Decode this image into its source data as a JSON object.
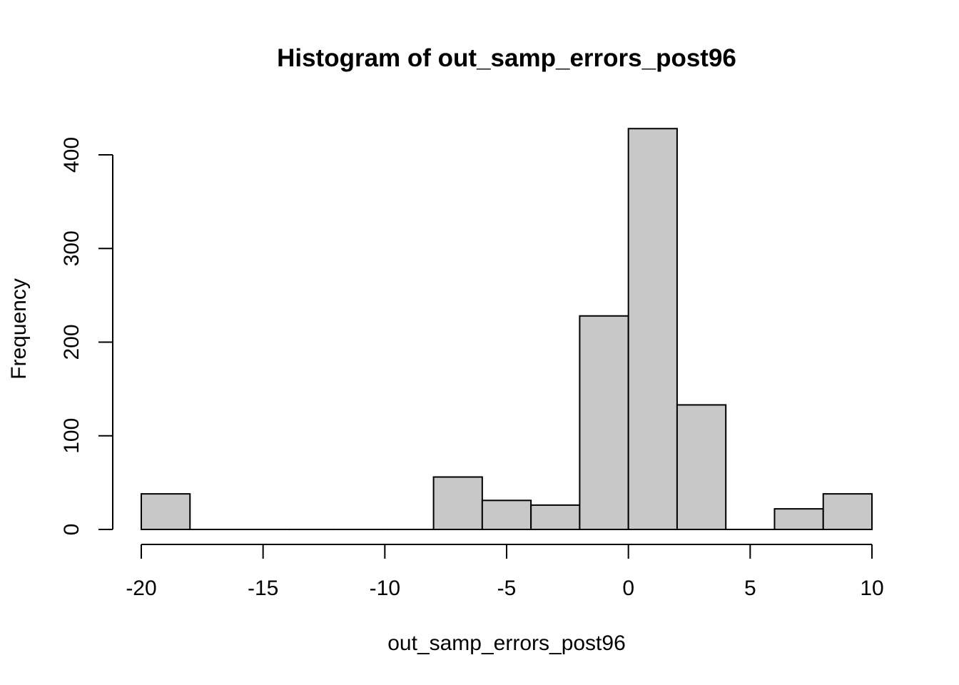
{
  "chart_data": {
    "type": "bar",
    "title": "Histogram of out_samp_errors_post96",
    "xlabel": "out_samp_errors_post96",
    "ylabel": "Frequency",
    "xlim": [
      -20,
      10
    ],
    "ylim": [
      0,
      430
    ],
    "x_ticks": [
      -20,
      -15,
      -10,
      -5,
      0,
      5,
      10
    ],
    "x_tick_labels": [
      "-20",
      "-15",
      "-10",
      "-5",
      "0",
      "5",
      "10"
    ],
    "y_ticks": [
      0,
      100,
      200,
      300,
      400
    ],
    "y_tick_labels": [
      "0",
      "100",
      "200",
      "300",
      "400"
    ],
    "bins": [
      {
        "start": -20,
        "end": -18,
        "count": 38
      },
      {
        "start": -18,
        "end": -16,
        "count": 0
      },
      {
        "start": -16,
        "end": -14,
        "count": 0
      },
      {
        "start": -14,
        "end": -12,
        "count": 0
      },
      {
        "start": -12,
        "end": -10,
        "count": 0
      },
      {
        "start": -10,
        "end": -8,
        "count": 0
      },
      {
        "start": -8,
        "end": -6,
        "count": 56
      },
      {
        "start": -6,
        "end": -4,
        "count": 31
      },
      {
        "start": -4,
        "end": -2,
        "count": 26
      },
      {
        "start": -2,
        "end": 0,
        "count": 228
      },
      {
        "start": 0,
        "end": 2,
        "count": 428
      },
      {
        "start": 2,
        "end": 4,
        "count": 133
      },
      {
        "start": 4,
        "end": 6,
        "count": 0
      },
      {
        "start": 6,
        "end": 8,
        "count": 22
      },
      {
        "start": 8,
        "end": 10,
        "count": 38
      }
    ],
    "bar_fill": "#c8c8c8",
    "bar_stroke": "#000000",
    "grid": false,
    "legend": "none"
  }
}
